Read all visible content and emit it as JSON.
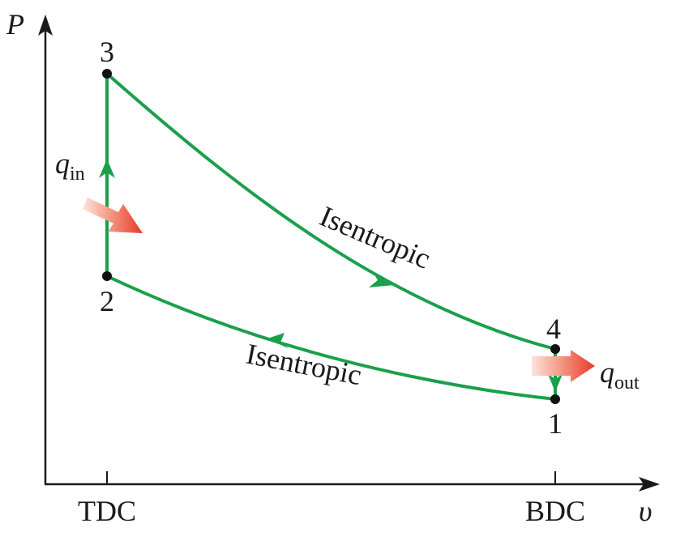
{
  "axes": {
    "y_label": "P",
    "x_label": "υ",
    "x_ticks": [
      "TDC",
      "BDC"
    ]
  },
  "states": {
    "s1": "1",
    "s2": "2",
    "s3": "3",
    "s4": "4"
  },
  "heat": {
    "q_in_symbol": "q",
    "q_in_sub": "in",
    "q_out_symbol": "q",
    "q_out_sub": "out"
  },
  "processes": {
    "expansion_label": "Isentropic",
    "compression_label": "Isentropic"
  },
  "colors": {
    "cycle": "#1aa04a",
    "heat_arrow": "#e8392c",
    "axis": "#1a1a1a"
  }
}
